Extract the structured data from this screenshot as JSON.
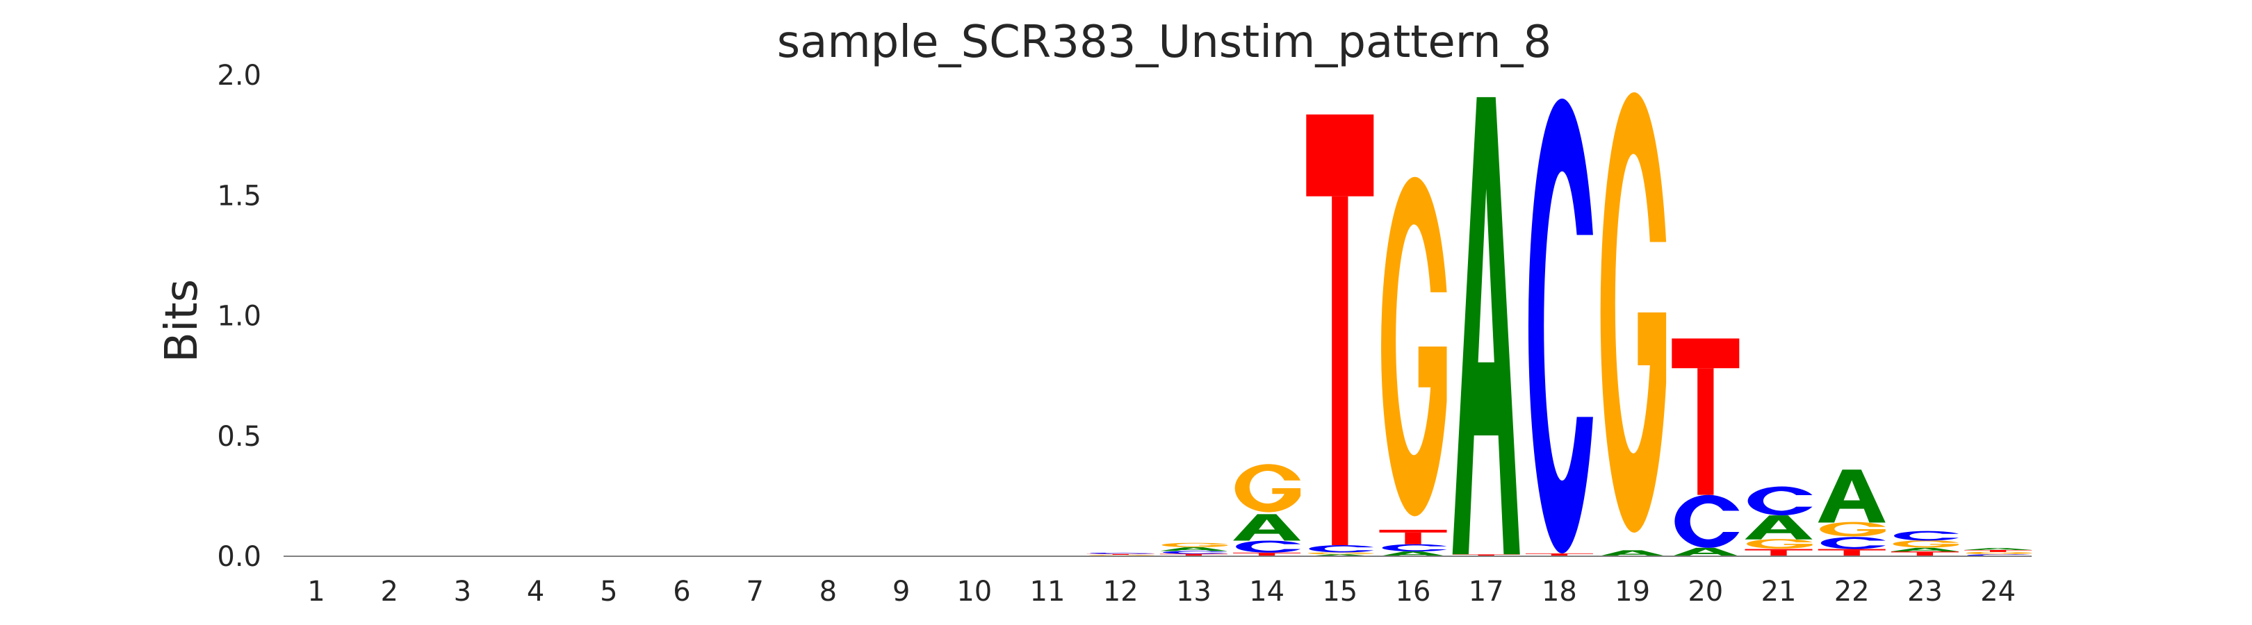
{
  "chart_data": {
    "type": "sequence-logo",
    "title": "sample_SCR383_Unstim_pattern_8",
    "xlabel": "",
    "ylabel": "Bits",
    "ylim": [
      0,
      2.0
    ],
    "yticks": [
      "0.0",
      "0.5",
      "1.0",
      "1.5",
      "2.0"
    ],
    "positions": [
      "1",
      "2",
      "3",
      "4",
      "5",
      "6",
      "7",
      "8",
      "9",
      "10",
      "11",
      "12",
      "13",
      "14",
      "15",
      "16",
      "17",
      "18",
      "19",
      "20",
      "21",
      "22",
      "23",
      "24"
    ],
    "grid": false,
    "colors": {
      "A": "#008000",
      "C": "#0000ff",
      "G": "#ffa500",
      "T": "#ff0000"
    },
    "stacks": [
      {
        "position": 1,
        "letters": []
      },
      {
        "position": 2,
        "letters": []
      },
      {
        "position": 3,
        "letters": []
      },
      {
        "position": 4,
        "letters": []
      },
      {
        "position": 5,
        "letters": []
      },
      {
        "position": 6,
        "letters": []
      },
      {
        "position": 7,
        "letters": []
      },
      {
        "position": 8,
        "letters": []
      },
      {
        "position": 9,
        "letters": []
      },
      {
        "position": 10,
        "letters": []
      },
      {
        "position": 11,
        "letters": []
      },
      {
        "position": 12,
        "letters": [
          {
            "base": "A",
            "bits": 0.003
          },
          {
            "base": "G",
            "bits": 0.003
          },
          {
            "base": "T",
            "bits": 0.004
          },
          {
            "base": "C",
            "bits": 0.005
          }
        ]
      },
      {
        "position": 13,
        "letters": [
          {
            "base": "T",
            "bits": 0.01
          },
          {
            "base": "C",
            "bits": 0.012
          },
          {
            "base": "A",
            "bits": 0.015
          },
          {
            "base": "G",
            "bits": 0.018
          }
        ]
      },
      {
        "position": 14,
        "letters": [
          {
            "base": "T",
            "bits": 0.015
          },
          {
            "base": "C",
            "bits": 0.05
          },
          {
            "base": "A",
            "bits": 0.11
          },
          {
            "base": "G",
            "bits": 0.2
          }
        ]
      },
      {
        "position": 15,
        "letters": [
          {
            "base": "A",
            "bits": 0.008
          },
          {
            "base": "G",
            "bits": 0.008
          },
          {
            "base": "C",
            "bits": 0.03
          },
          {
            "base": "T",
            "bits": 1.79
          }
        ]
      },
      {
        "position": 16,
        "letters": [
          {
            "base": "A",
            "bits": 0.02
          },
          {
            "base": "C",
            "bits": 0.03
          },
          {
            "base": "T",
            "bits": 0.06
          },
          {
            "base": "G",
            "bits": 1.41
          }
        ]
      },
      {
        "position": 17,
        "letters": [
          {
            "base": "T",
            "bits": 0.008
          },
          {
            "base": "A",
            "bits": 1.9
          }
        ]
      },
      {
        "position": 18,
        "letters": [
          {
            "base": "T",
            "bits": 0.012
          },
          {
            "base": "C",
            "bits": 1.89
          }
        ]
      },
      {
        "position": 19,
        "letters": [
          {
            "base": "A",
            "bits": 0.025
          },
          {
            "base": "G",
            "bits": 1.83
          }
        ]
      },
      {
        "position": 20,
        "letters": [
          {
            "base": "A",
            "bits": 0.035
          },
          {
            "base": "C",
            "bits": 0.22
          },
          {
            "base": "T",
            "bits": 0.65
          }
        ]
      },
      {
        "position": 21,
        "letters": [
          {
            "base": "T",
            "bits": 0.03
          },
          {
            "base": "G",
            "bits": 0.04
          },
          {
            "base": "A",
            "bits": 0.1
          },
          {
            "base": "C",
            "bits": 0.12
          }
        ]
      },
      {
        "position": 22,
        "letters": [
          {
            "base": "T",
            "bits": 0.03
          },
          {
            "base": "C",
            "bits": 0.05
          },
          {
            "base": "G",
            "bits": 0.06
          },
          {
            "base": "A",
            "bits": 0.22
          }
        ]
      },
      {
        "position": 23,
        "letters": [
          {
            "base": "T",
            "bits": 0.02
          },
          {
            "base": "A",
            "bits": 0.015
          },
          {
            "base": "G",
            "bits": 0.03
          },
          {
            "base": "C",
            "bits": 0.04
          }
        ]
      },
      {
        "position": 24,
        "letters": [
          {
            "base": "C",
            "bits": 0.008
          },
          {
            "base": "G",
            "bits": 0.01
          },
          {
            "base": "T",
            "bits": 0.008
          },
          {
            "base": "A",
            "bits": 0.008
          }
        ]
      }
    ]
  }
}
